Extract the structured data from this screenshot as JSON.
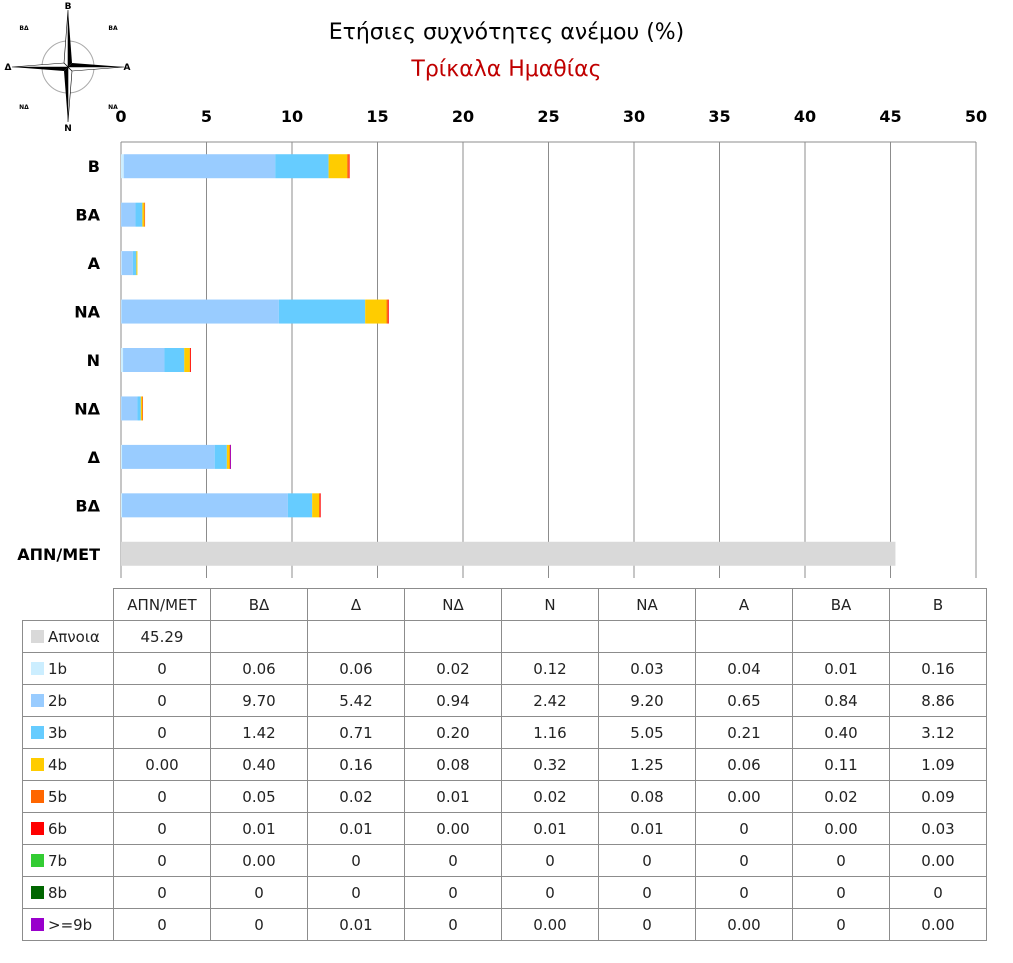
{
  "chart_data": {
    "type": "bar",
    "orientation": "horizontal",
    "stacked": true,
    "title": "Ετήσιες συχνότητες ανέμου (%)",
    "subtitle": "Τρίκαλα Ημαθίας",
    "xlim": [
      0,
      50
    ],
    "xticks": [
      "0",
      "5",
      "10",
      "15",
      "20",
      "25",
      "30",
      "35",
      "40",
      "45",
      "50"
    ],
    "grid": true,
    "legend": "table-below",
    "categories": [
      "ΑΠΝ/ΜΕΤ",
      "ΒΔ",
      "Δ",
      "ΝΔ",
      "Ν",
      "ΝΑ",
      "Α",
      "ΒΑ",
      "Β"
    ],
    "series": [
      {
        "name": "Απνοια",
        "color": "#d9d9d9",
        "values": [
          "45.29",
          "",
          "",
          "",
          "",
          "",
          "",
          "",
          ""
        ]
      },
      {
        "name": "1b",
        "color": "#cceeff",
        "values": [
          "0",
          "0.06",
          "0.06",
          "0.02",
          "0.12",
          "0.03",
          "0.04",
          "0.01",
          "0.16"
        ]
      },
      {
        "name": "2b",
        "color": "#99ccff",
        "values": [
          "0",
          "9.70",
          "5.42",
          "0.94",
          "2.42",
          "9.20",
          "0.65",
          "0.84",
          "8.86"
        ]
      },
      {
        "name": "3b",
        "color": "#66ccff",
        "values": [
          "0",
          "1.42",
          "0.71",
          "0.20",
          "1.16",
          "5.05",
          "0.21",
          "0.40",
          "3.12"
        ]
      },
      {
        "name": "4b",
        "color": "#ffcc00",
        "values": [
          "0.00",
          "0.40",
          "0.16",
          "0.08",
          "0.32",
          "1.25",
          "0.06",
          "0.11",
          "1.09"
        ]
      },
      {
        "name": "5b",
        "color": "#ff6600",
        "values": [
          "0",
          "0.05",
          "0.02",
          "0.01",
          "0.02",
          "0.08",
          "0.00",
          "0.02",
          "0.09"
        ]
      },
      {
        "name": "6b",
        "color": "#ff0000",
        "values": [
          "0",
          "0.01",
          "0.01",
          "0.00",
          "0.01",
          "0.01",
          "0",
          "0.00",
          "0.03"
        ]
      },
      {
        "name": "7b",
        "color": "#33cc33",
        "values": [
          "0",
          "0.00",
          "0",
          "0",
          "0",
          "0",
          "0",
          "0",
          "0.00"
        ]
      },
      {
        "name": "8b",
        "color": "#006600",
        "values": [
          "0",
          "0",
          "0",
          "0",
          "0",
          "0",
          "0",
          "0",
          "0"
        ]
      },
      {
        "name": ">=9b",
        "color": "#9900cc",
        "values": [
          "0",
          "0",
          "0.01",
          "0",
          "0.00",
          "0",
          "0.00",
          "0",
          "0.00"
        ]
      }
    ]
  },
  "compass": {
    "n": "Β",
    "ne": "ΒΑ",
    "e": "Α",
    "se": "ΝΑ",
    "s": "Ν",
    "sw": "ΝΔ",
    "w": "Δ",
    "nw": "ΒΔ"
  }
}
